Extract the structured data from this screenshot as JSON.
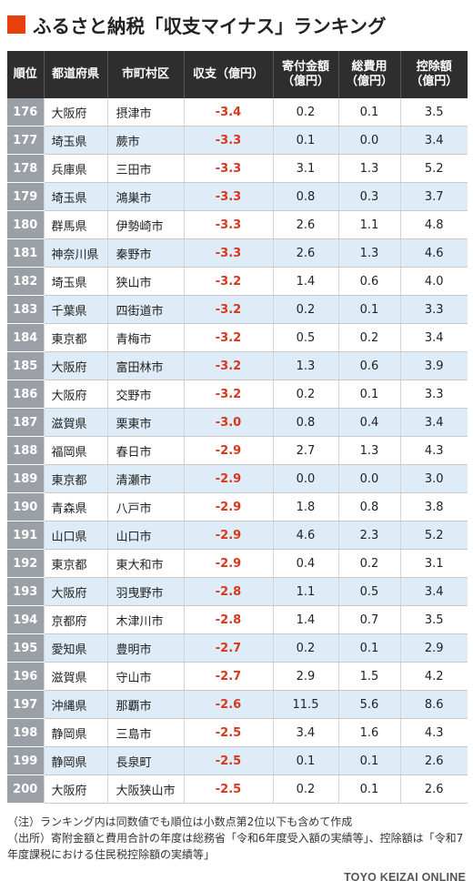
{
  "title": "ふるさと納税「収支マイナス」ランキング",
  "accent_color": "#e8400c",
  "negative_color": "#d8371b",
  "headers": {
    "rank": "順位",
    "pref": "都道府県",
    "city": "市町村区",
    "net": "収支（億円）",
    "donation": [
      "寄付金額",
      "（億円）"
    ],
    "cost": [
      "総費用",
      "（億円）"
    ],
    "deduction": [
      "控除額",
      "（億円）"
    ]
  },
  "rows": [
    {
      "rank": "176",
      "pref": "大阪府",
      "city": "摂津市",
      "net": "-3.4",
      "donation": "0.2",
      "cost": "0.1",
      "deduction": "3.5"
    },
    {
      "rank": "177",
      "pref": "埼玉県",
      "city": "蕨市",
      "net": "-3.3",
      "donation": "0.1",
      "cost": "0.0",
      "deduction": "3.4"
    },
    {
      "rank": "178",
      "pref": "兵庫県",
      "city": "三田市",
      "net": "-3.3",
      "donation": "3.1",
      "cost": "1.3",
      "deduction": "5.2"
    },
    {
      "rank": "179",
      "pref": "埼玉県",
      "city": "鴻巣市",
      "net": "-3.3",
      "donation": "0.8",
      "cost": "0.3",
      "deduction": "3.7"
    },
    {
      "rank": "180",
      "pref": "群馬県",
      "city": "伊勢崎市",
      "net": "-3.3",
      "donation": "2.6",
      "cost": "1.1",
      "deduction": "4.8"
    },
    {
      "rank": "181",
      "pref": "神奈川県",
      "city": "秦野市",
      "net": "-3.3",
      "donation": "2.6",
      "cost": "1.3",
      "deduction": "4.6"
    },
    {
      "rank": "182",
      "pref": "埼玉県",
      "city": "狭山市",
      "net": "-3.2",
      "donation": "1.4",
      "cost": "0.6",
      "deduction": "4.0"
    },
    {
      "rank": "183",
      "pref": "千葉県",
      "city": "四街道市",
      "net": "-3.2",
      "donation": "0.2",
      "cost": "0.1",
      "deduction": "3.3"
    },
    {
      "rank": "184",
      "pref": "東京都",
      "city": "青梅市",
      "net": "-3.2",
      "donation": "0.5",
      "cost": "0.2",
      "deduction": "3.4"
    },
    {
      "rank": "185",
      "pref": "大阪府",
      "city": "富田林市",
      "net": "-3.2",
      "donation": "1.3",
      "cost": "0.6",
      "deduction": "3.9"
    },
    {
      "rank": "186",
      "pref": "大阪府",
      "city": "交野市",
      "net": "-3.2",
      "donation": "0.2",
      "cost": "0.1",
      "deduction": "3.3"
    },
    {
      "rank": "187",
      "pref": "滋賀県",
      "city": "栗東市",
      "net": "-3.0",
      "donation": "0.8",
      "cost": "0.4",
      "deduction": "3.4"
    },
    {
      "rank": "188",
      "pref": "福岡県",
      "city": "春日市",
      "net": "-2.9",
      "donation": "2.7",
      "cost": "1.3",
      "deduction": "4.3"
    },
    {
      "rank": "189",
      "pref": "東京都",
      "city": "清瀬市",
      "net": "-2.9",
      "donation": "0.0",
      "cost": "0.0",
      "deduction": "3.0"
    },
    {
      "rank": "190",
      "pref": "青森県",
      "city": "八戸市",
      "net": "-2.9",
      "donation": "1.8",
      "cost": "0.8",
      "deduction": "3.8"
    },
    {
      "rank": "191",
      "pref": "山口県",
      "city": "山口市",
      "net": "-2.9",
      "donation": "4.6",
      "cost": "2.3",
      "deduction": "5.2"
    },
    {
      "rank": "192",
      "pref": "東京都",
      "city": "東大和市",
      "net": "-2.9",
      "donation": "0.4",
      "cost": "0.2",
      "deduction": "3.1"
    },
    {
      "rank": "193",
      "pref": "大阪府",
      "city": "羽曳野市",
      "net": "-2.8",
      "donation": "1.1",
      "cost": "0.5",
      "deduction": "3.4"
    },
    {
      "rank": "194",
      "pref": "京都府",
      "city": "木津川市",
      "net": "-2.8",
      "donation": "1.4",
      "cost": "0.7",
      "deduction": "3.5"
    },
    {
      "rank": "195",
      "pref": "愛知県",
      "city": "豊明市",
      "net": "-2.7",
      "donation": "0.2",
      "cost": "0.1",
      "deduction": "2.9"
    },
    {
      "rank": "196",
      "pref": "滋賀県",
      "city": "守山市",
      "net": "-2.7",
      "donation": "2.9",
      "cost": "1.5",
      "deduction": "4.2"
    },
    {
      "rank": "197",
      "pref": "沖縄県",
      "city": "那覇市",
      "net": "-2.6",
      "donation": "11.5",
      "cost": "5.6",
      "deduction": "8.6"
    },
    {
      "rank": "198",
      "pref": "静岡県",
      "city": "三島市",
      "net": "-2.5",
      "donation": "3.4",
      "cost": "1.6",
      "deduction": "4.3"
    },
    {
      "rank": "199",
      "pref": "静岡県",
      "city": "長泉町",
      "net": "-2.5",
      "donation": "0.1",
      "cost": "0.1",
      "deduction": "2.6"
    },
    {
      "rank": "200",
      "pref": "大阪府",
      "city": "大阪狭山市",
      "net": "-2.5",
      "donation": "0.2",
      "cost": "0.1",
      "deduction": "2.6"
    }
  ],
  "notes": [
    "（注）ランキング内は同数値でも順位は小数点第2位以下も含めて作成",
    "（出所）寄附金額と費用合計の年度は総務省「令和6年度受入額の実績等」、控除額は「令和7年度課税における住民税控除額の実績等」"
  ],
  "credit": "TOYO KEIZAI ONLINE"
}
